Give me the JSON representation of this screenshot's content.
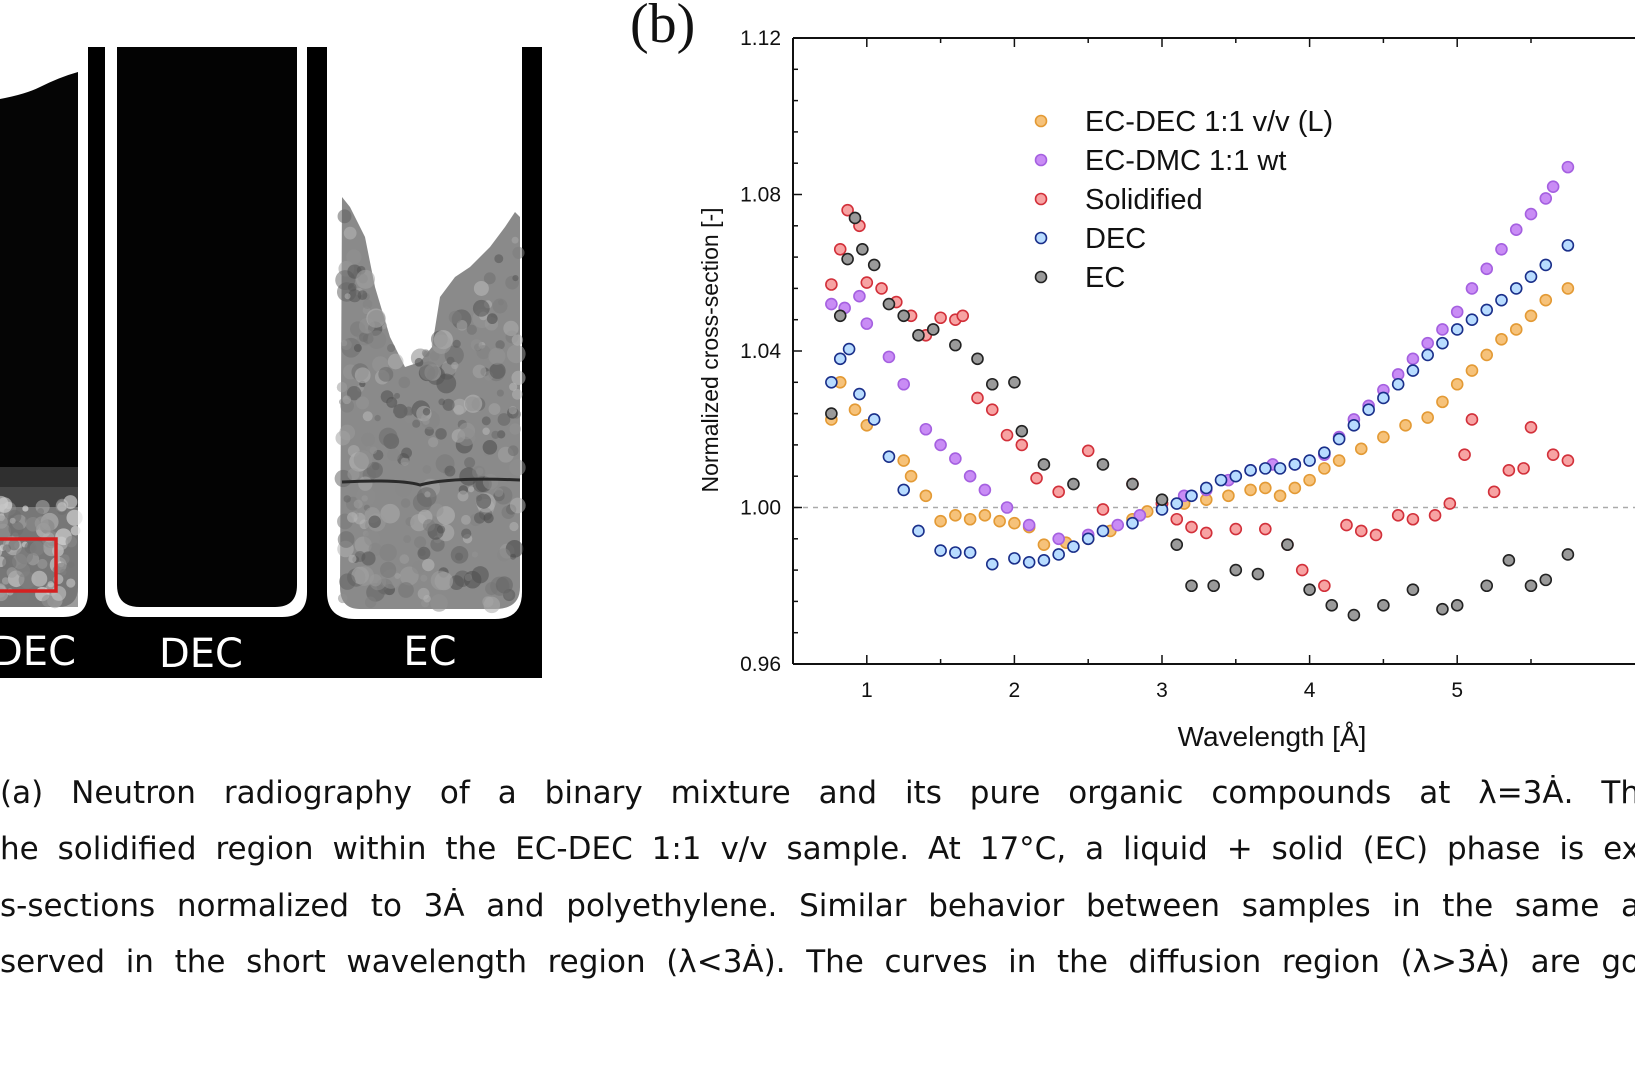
{
  "panel_a": {
    "tube_labels": [
      "DEC",
      "DEC",
      "EC"
    ],
    "highlight_color": "#d42020"
  },
  "panel_b": {
    "label": "(b)"
  },
  "chart_data": {
    "type": "scatter",
    "xlabel": "Wavelength [Å]",
    "ylabel": "Normalized cross-section [-]",
    "xlim": [
      0.5,
      5.75
    ],
    "ylim": [
      0.96,
      1.12
    ],
    "xticks": [
      "1",
      "2",
      "3",
      "4",
      "5"
    ],
    "yticks": [
      "0.96",
      "1.00",
      "1.04",
      "1.08",
      "1.12"
    ],
    "reference_line": 1.0,
    "legend_position": "top-center",
    "series": [
      {
        "name": "EC-DEC 1:1 v/v (L)",
        "fill": "#f6c27a",
        "stroke": "#e39a35",
        "x": [
          0.76,
          0.82,
          0.92,
          1.0,
          1.25,
          1.3,
          1.4,
          1.5,
          1.6,
          1.7,
          1.8,
          1.9,
          2.0,
          2.1,
          2.2,
          2.35,
          2.5,
          2.65,
          2.8,
          2.9,
          3.0,
          3.15,
          3.3,
          3.45,
          3.6,
          3.7,
          3.8,
          3.9,
          4.0,
          4.1,
          4.2,
          4.35,
          4.5,
          4.65,
          4.8,
          4.9,
          5.0,
          5.1,
          5.2,
          5.3,
          5.4,
          5.5,
          5.6,
          5.75
        ],
        "y": [
          1.0225,
          1.032,
          1.025,
          1.021,
          1.012,
          1.008,
          1.003,
          0.9965,
          0.998,
          0.997,
          0.998,
          0.9965,
          0.996,
          0.995,
          0.9905,
          0.991,
          0.992,
          0.994,
          0.997,
          0.999,
          1.001,
          1.001,
          1.002,
          1.003,
          1.0045,
          1.005,
          1.003,
          1.005,
          1.007,
          1.01,
          1.012,
          1.015,
          1.018,
          1.021,
          1.023,
          1.027,
          1.0315,
          1.035,
          1.039,
          1.043,
          1.0455,
          1.049,
          1.053,
          1.056
        ]
      },
      {
        "name": "EC-DMC 1:1 wt",
        "fill": "#c98cf5",
        "stroke": "#a560e0",
        "x": [
          0.76,
          0.85,
          0.95,
          1.0,
          1.15,
          1.25,
          1.4,
          1.5,
          1.6,
          1.7,
          1.8,
          1.95,
          2.1,
          2.3,
          2.5,
          2.7,
          2.85,
          3.0,
          3.15,
          3.3,
          3.45,
          3.6,
          3.75,
          3.9,
          4.1,
          4.2,
          4.3,
          4.4,
          4.5,
          4.6,
          4.7,
          4.8,
          4.9,
          5.0,
          5.1,
          5.2,
          5.3,
          5.4,
          5.5,
          5.6,
          5.65,
          5.75
        ],
        "y": [
          1.052,
          1.051,
          1.054,
          1.047,
          1.0385,
          1.0315,
          1.02,
          1.016,
          1.0125,
          1.008,
          1.0045,
          1.0,
          0.9955,
          0.992,
          0.993,
          0.9955,
          0.998,
          1.001,
          1.003,
          1.0045,
          1.007,
          1.0095,
          1.011,
          1.011,
          1.0135,
          1.018,
          1.0225,
          1.026,
          1.03,
          1.034,
          1.038,
          1.042,
          1.0455,
          1.05,
          1.056,
          1.061,
          1.066,
          1.071,
          1.075,
          1.079,
          1.082,
          1.087
        ]
      },
      {
        "name": "Solidified",
        "fill": "#f7a3a3",
        "stroke": "#d2303a",
        "x": [
          0.76,
          0.82,
          0.87,
          0.95,
          1.0,
          1.1,
          1.2,
          1.3,
          1.4,
          1.5,
          1.6,
          1.65,
          1.75,
          1.85,
          1.95,
          2.05,
          2.15,
          2.3,
          2.5,
          2.6,
          2.8,
          3.0,
          3.1,
          3.2,
          3.3,
          3.5,
          3.7,
          3.85,
          3.95,
          4.1,
          4.25,
          4.35,
          4.45,
          4.6,
          4.7,
          4.85,
          4.95,
          5.05,
          5.1,
          5.25,
          5.35,
          5.45,
          5.5,
          5.65,
          5.75
        ],
        "y": [
          1.057,
          1.066,
          1.076,
          1.072,
          1.0575,
          1.056,
          1.0525,
          1.049,
          1.044,
          1.0485,
          1.048,
          1.049,
          1.028,
          1.025,
          1.0185,
          1.016,
          1.0075,
          1.004,
          1.0145,
          0.9995,
          1.006,
          1.001,
          0.997,
          0.995,
          0.9935,
          0.9945,
          0.9945,
          0.9905,
          0.984,
          0.98,
          0.9955,
          0.994,
          0.993,
          0.998,
          0.997,
          0.998,
          1.001,
          1.0135,
          1.0225,
          1.004,
          1.0095,
          1.01,
          1.0205,
          1.0135,
          1.012
        ]
      },
      {
        "name": "DEC",
        "fill": "#b8dcff",
        "stroke": "#1a2f8a",
        "x": [
          0.76,
          0.82,
          0.88,
          0.95,
          1.05,
          1.15,
          1.25,
          1.35,
          1.5,
          1.6,
          1.7,
          1.85,
          2.0,
          2.1,
          2.2,
          2.3,
          2.4,
          2.5,
          2.6,
          2.8,
          3.0,
          3.1,
          3.2,
          3.3,
          3.4,
          3.5,
          3.6,
          3.7,
          3.8,
          3.9,
          4.0,
          4.1,
          4.2,
          4.3,
          4.4,
          4.5,
          4.6,
          4.7,
          4.8,
          4.9,
          5.0,
          5.1,
          5.2,
          5.3,
          5.4,
          5.5,
          5.6,
          5.75
        ],
        "y": [
          1.032,
          1.038,
          1.0405,
          1.029,
          1.0225,
          1.013,
          1.0045,
          0.994,
          0.989,
          0.9885,
          0.9885,
          0.9855,
          0.987,
          0.986,
          0.9865,
          0.988,
          0.99,
          0.992,
          0.994,
          0.996,
          0.9995,
          1.001,
          1.003,
          1.005,
          1.007,
          1.008,
          1.0095,
          1.01,
          1.01,
          1.011,
          1.012,
          1.014,
          1.0175,
          1.021,
          1.025,
          1.028,
          1.0315,
          1.035,
          1.039,
          1.042,
          1.0455,
          1.048,
          1.0505,
          1.053,
          1.056,
          1.059,
          1.062,
          1.067
        ]
      },
      {
        "name": "EC",
        "fill": "#9a9a9a",
        "stroke": "#222222",
        "x": [
          0.76,
          0.82,
          0.87,
          0.92,
          0.97,
          1.05,
          1.15,
          1.25,
          1.35,
          1.45,
          1.6,
          1.75,
          1.85,
          2.0,
          2.05,
          2.2,
          2.4,
          2.6,
          2.8,
          3.0,
          3.1,
          3.2,
          3.35,
          3.5,
          3.65,
          3.85,
          4.0,
          4.15,
          4.3,
          4.5,
          4.7,
          4.9,
          5.0,
          5.2,
          5.35,
          5.5,
          5.6,
          5.75
        ],
        "y": [
          1.024,
          1.049,
          1.0635,
          1.074,
          1.066,
          1.062,
          1.052,
          1.049,
          1.044,
          1.0455,
          1.0415,
          1.038,
          1.0315,
          1.032,
          1.0195,
          1.011,
          1.006,
          1.011,
          1.006,
          1.002,
          0.9905,
          0.98,
          0.98,
          0.984,
          0.983,
          0.9905,
          0.979,
          0.975,
          0.9725,
          0.975,
          0.979,
          0.974,
          0.975,
          0.98,
          0.9865,
          0.98,
          0.9815,
          0.988
        ]
      }
    ]
  },
  "caption": {
    "lines": [
      "(a) Neutron radiography of a binary mixture and its pure organic compounds at λ=3Ȧ. Th",
      "he solidified region within the EC-DEC 1:1 v/v sample. At 17°C, a liquid + solid (EC) phase is ex",
      "s-sections normalized to 3Ȧ and polyethylene. Similar behavior between samples in the same a",
      "served in the short wavelength region (λ<3Ȧ). The curves in the diffusion region (λ>3Ȧ) are go"
    ]
  }
}
